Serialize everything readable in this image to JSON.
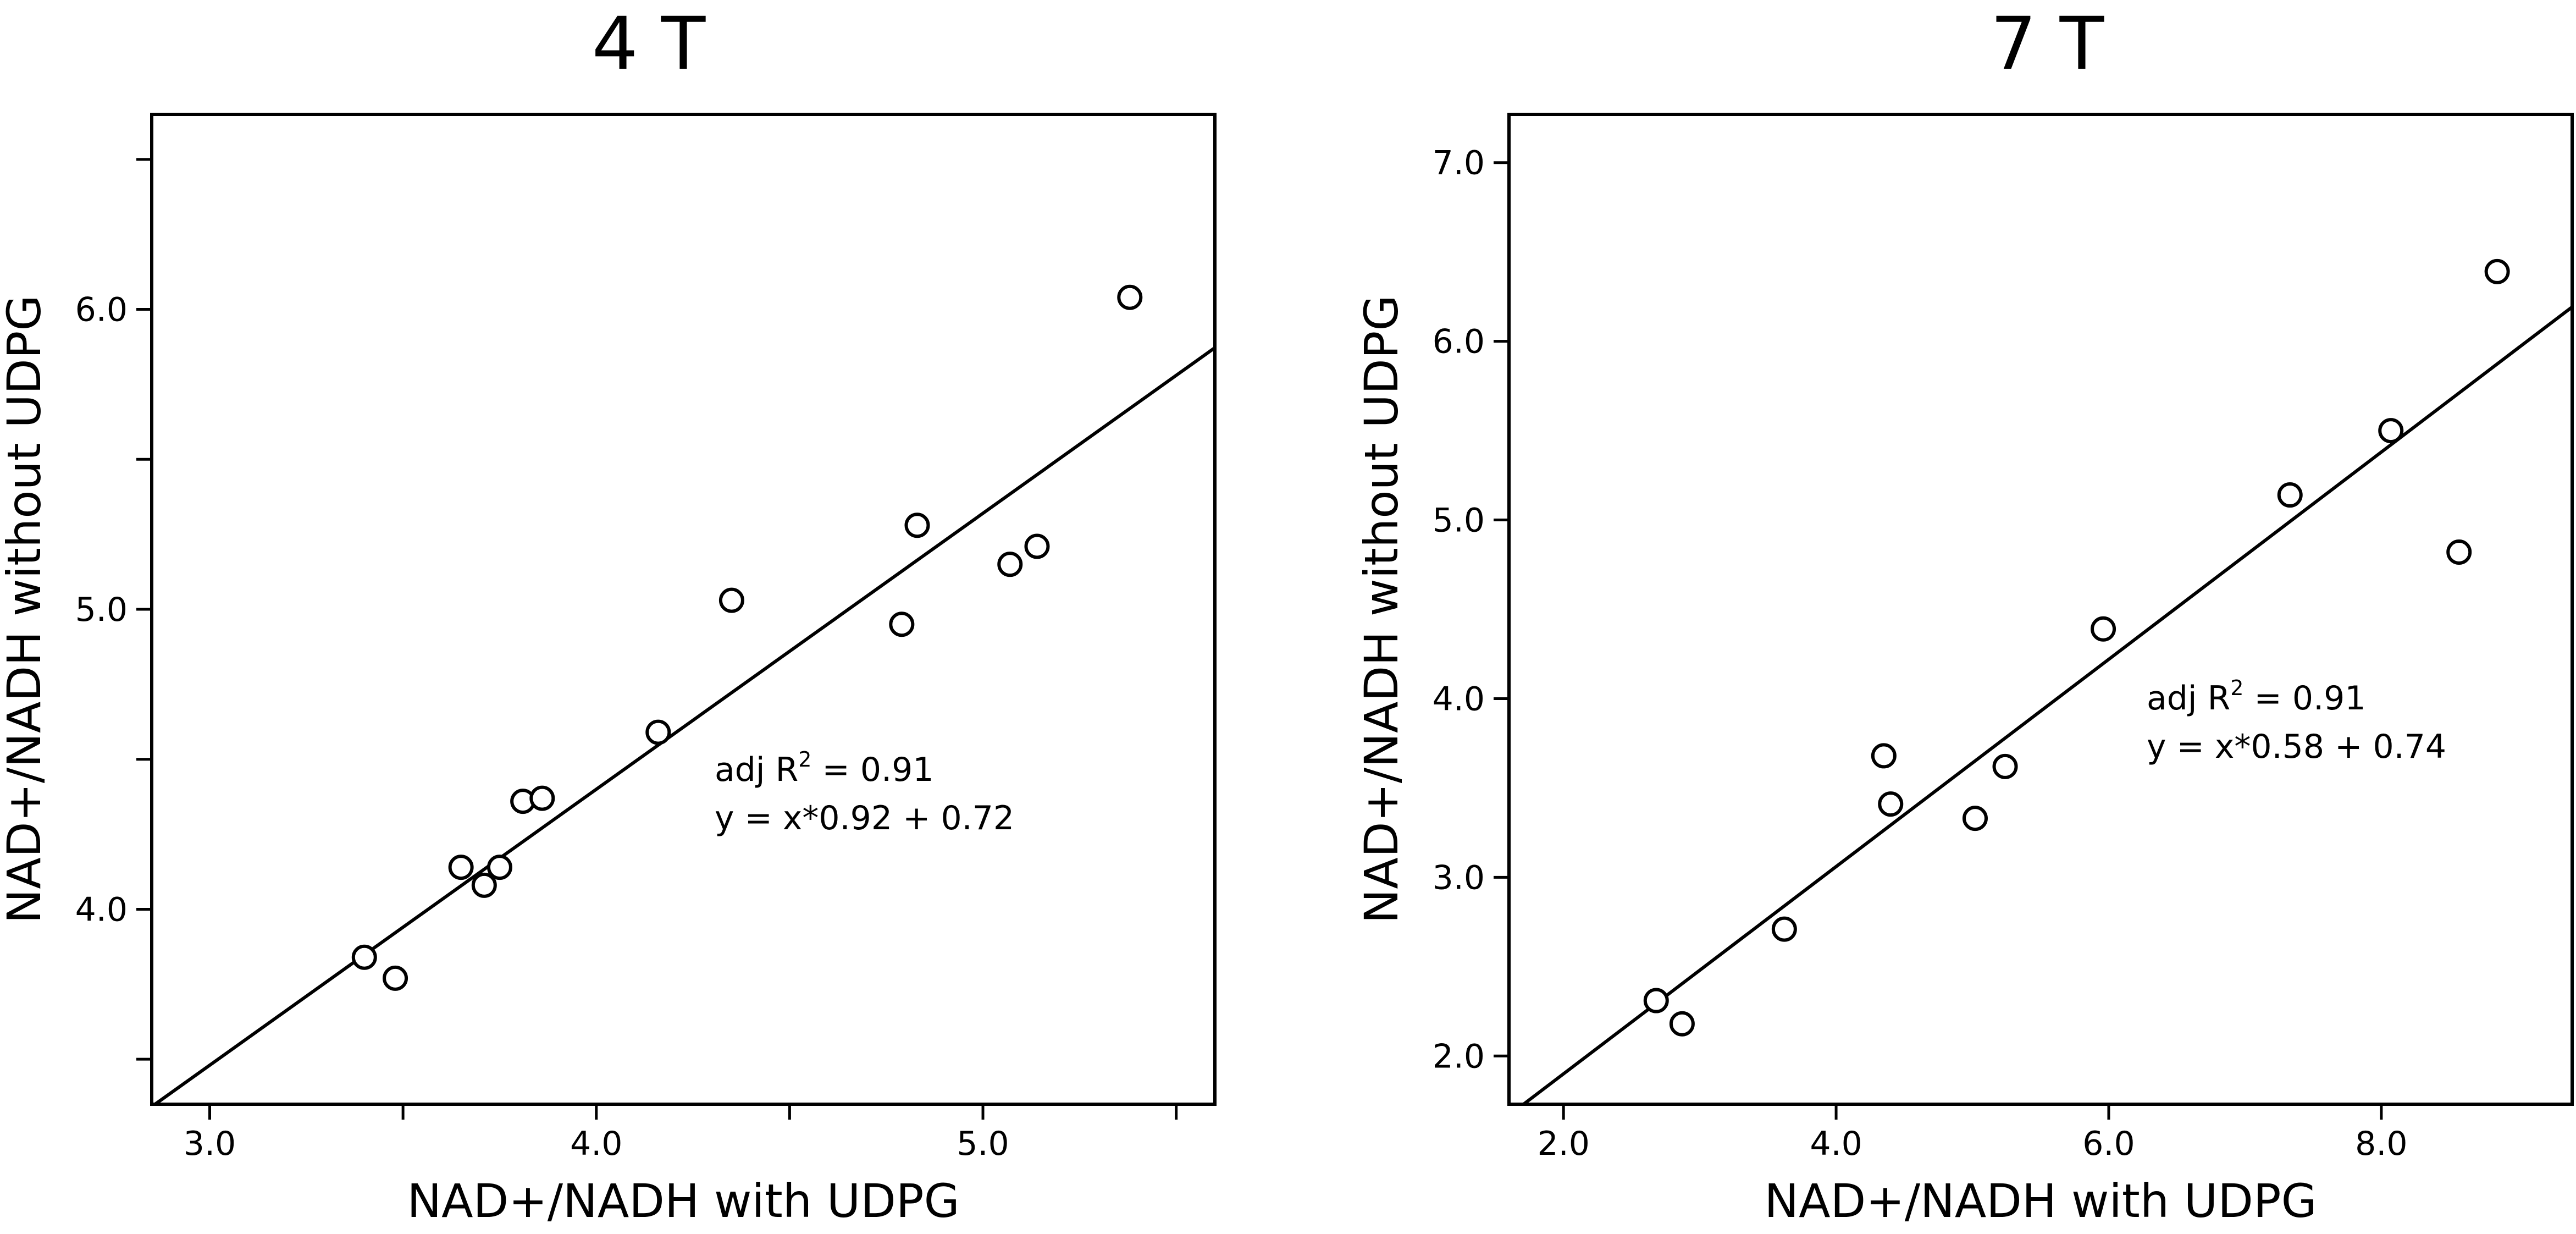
{
  "chart_data": [
    {
      "type": "scatter",
      "title": "4 T",
      "xlabel": "NAD+/NADH with UDPG",
      "ylabel": "NAD+/NADH without UDPG",
      "xlim": [
        2.85,
        5.6
      ],
      "ylim": [
        3.35,
        6.65
      ],
      "x_ticks": [
        3.0,
        3.5,
        4.0,
        4.5,
        5.0,
        5.5
      ],
      "x_tick_labels": [
        "3.0",
        "",
        "4.0",
        "",
        "5.0",
        ""
      ],
      "y_ticks": [
        3.5,
        4.0,
        4.5,
        5.0,
        5.5,
        6.0,
        6.5
      ],
      "y_tick_labels": [
        "",
        "4.0",
        "",
        "5.0",
        "",
        "6.0",
        ""
      ],
      "grid": false,
      "points": [
        {
          "x": 3.4,
          "y": 3.84
        },
        {
          "x": 3.48,
          "y": 3.77
        },
        {
          "x": 3.65,
          "y": 4.14
        },
        {
          "x": 3.71,
          "y": 4.08
        },
        {
          "x": 3.75,
          "y": 4.14
        },
        {
          "x": 3.81,
          "y": 4.36
        },
        {
          "x": 3.86,
          "y": 4.37
        },
        {
          "x": 4.16,
          "y": 4.59
        },
        {
          "x": 4.35,
          "y": 5.03
        },
        {
          "x": 4.79,
          "y": 4.95
        },
        {
          "x": 4.83,
          "y": 5.28
        },
        {
          "x": 5.07,
          "y": 5.15
        },
        {
          "x": 5.14,
          "y": 5.21
        },
        {
          "x": 5.38,
          "y": 6.04
        }
      ],
      "fit_line": {
        "slope": 0.92,
        "intercept": 0.72
      },
      "annotation": {
        "r2_prefix": "adj R",
        "r2_sup": "2",
        "r2_suffix": " = 0.91",
        "equation": "y = x*0.92 + 0.72"
      }
    },
    {
      "type": "scatter",
      "title": "7 T",
      "xlabel": "NAD+/NADH with UDPG",
      "ylabel": "NAD+/NADH without UDPG",
      "xlim": [
        1.6,
        9.4
      ],
      "ylim": [
        1.73,
        7.27
      ],
      "x_ticks": [
        2.0,
        4.0,
        6.0,
        8.0
      ],
      "x_tick_labels": [
        "2.0",
        "4.0",
        "6.0",
        "8.0"
      ],
      "y_ticks": [
        2.0,
        3.0,
        4.0,
        5.0,
        6.0,
        7.0
      ],
      "y_tick_labels": [
        "2.0",
        "3.0",
        "4.0",
        "5.0",
        "6.0",
        "7.0"
      ],
      "grid": false,
      "points": [
        {
          "x": 2.68,
          "y": 2.31
        },
        {
          "x": 2.87,
          "y": 2.18
        },
        {
          "x": 3.62,
          "y": 2.71
        },
        {
          "x": 4.35,
          "y": 3.68
        },
        {
          "x": 4.4,
          "y": 3.41
        },
        {
          "x": 5.02,
          "y": 3.33
        },
        {
          "x": 5.24,
          "y": 3.62
        },
        {
          "x": 5.96,
          "y": 4.39
        },
        {
          "x": 7.33,
          "y": 5.14
        },
        {
          "x": 8.07,
          "y": 5.5
        },
        {
          "x": 8.57,
          "y": 4.82
        },
        {
          "x": 8.85,
          "y": 6.39
        }
      ],
      "fit_line": {
        "slope": 0.58,
        "intercept": 0.74
      },
      "annotation": {
        "r2_prefix": "adj R",
        "r2_sup": "2",
        "r2_suffix": " = 0.91",
        "equation": "y = x*0.58 + 0.74"
      }
    }
  ]
}
